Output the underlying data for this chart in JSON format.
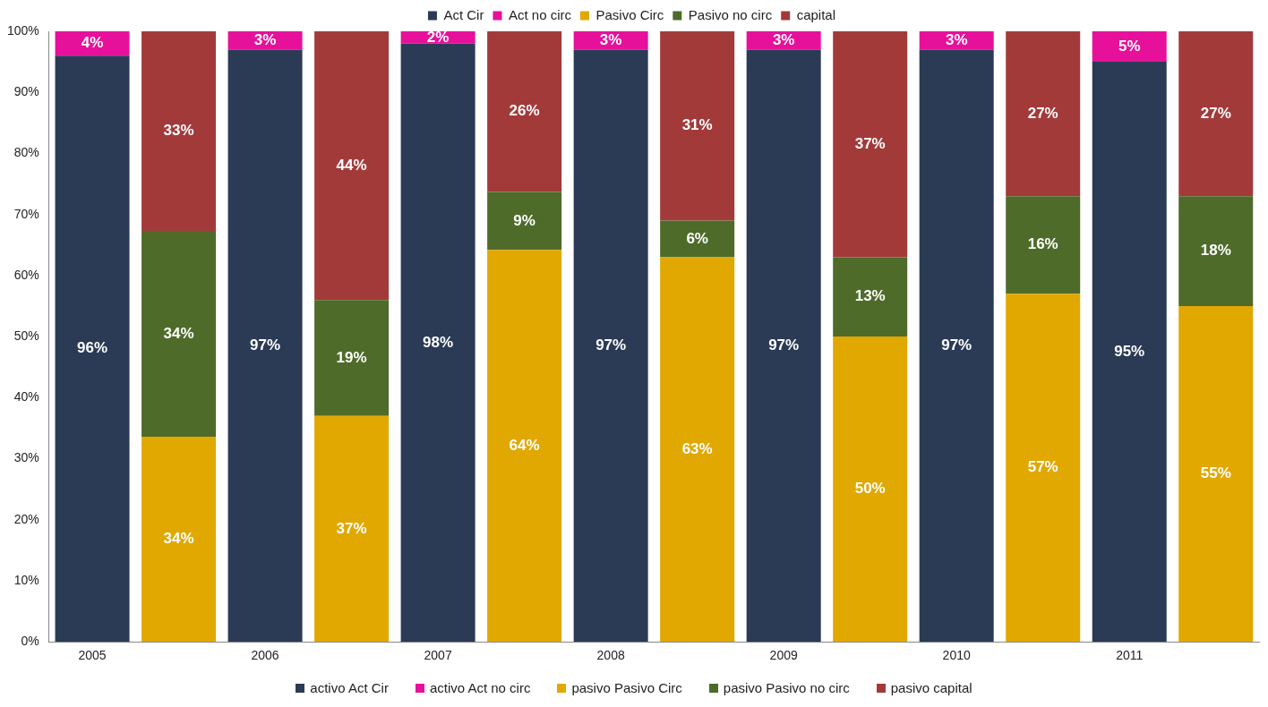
{
  "chart_data": {
    "type": "bar",
    "stacked": true,
    "categories": [
      "2005",
      null,
      "2006",
      null,
      "2007",
      null,
      "2008",
      null,
      "2009",
      null,
      "2010",
      null,
      "2011",
      null
    ],
    "ylim": [
      0,
      100
    ],
    "yticks": [
      {
        "value": 0,
        "label": "0%"
      },
      {
        "value": 10,
        "label": "10%"
      },
      {
        "value": 20,
        "label": "20%"
      },
      {
        "value": 30,
        "label": "30%"
      },
      {
        "value": 40,
        "label": "40%"
      },
      {
        "value": 50,
        "label": "50%"
      },
      {
        "value": 60,
        "label": "60%"
      },
      {
        "value": 70,
        "label": "70%"
      },
      {
        "value": 80,
        "label": "80%"
      },
      {
        "value": 90,
        "label": "90%"
      },
      {
        "value": 100,
        "label": "100%"
      }
    ],
    "grid": false,
    "legend": "top",
    "series": [
      {
        "name": "Act Cir",
        "color": "#2b3a55",
        "values": [
          96,
          null,
          97,
          null,
          98,
          null,
          97,
          null,
          97,
          null,
          97,
          null,
          95,
          null
        ],
        "value_labels": [
          "96%",
          null,
          "97%",
          null,
          "98%",
          null,
          "97%",
          null,
          "97%",
          null,
          "97%",
          null,
          "95%",
          null
        ]
      },
      {
        "name": "Act no circ",
        "color": "#e6109b",
        "values": [
          4,
          null,
          3,
          null,
          2,
          null,
          3,
          null,
          3,
          null,
          3,
          null,
          5,
          null
        ],
        "value_labels": [
          "4%",
          null,
          "3%",
          null,
          "2%",
          null,
          "3%",
          null,
          "3%",
          null,
          "3%",
          null,
          "5%",
          null
        ]
      },
      {
        "name": "Pasivo Circ",
        "color": "#e0a800",
        "values": [
          null,
          33.6,
          null,
          37,
          null,
          64.2,
          null,
          63,
          null,
          50,
          null,
          57,
          null,
          55
        ],
        "value_labels": [
          null,
          "34%",
          null,
          "37%",
          null,
          "64%",
          null,
          "63%",
          null,
          "50%",
          null,
          "57%",
          null,
          "55%"
        ]
      },
      {
        "name": "Pasivo no circ",
        "color": "#4e6b2a",
        "values": [
          null,
          33.7,
          null,
          19,
          null,
          9.5,
          null,
          6,
          null,
          13,
          null,
          16,
          null,
          18
        ],
        "value_labels": [
          null,
          "34%",
          null,
          "19%",
          null,
          "9%",
          null,
          "6%",
          null,
          "13%",
          null,
          "16%",
          null,
          "18%"
        ]
      },
      {
        "name": "capital",
        "color": "#a33a3a",
        "values": [
          null,
          32.7,
          null,
          44,
          null,
          26.3,
          null,
          31,
          null,
          37,
          null,
          27,
          null,
          27
        ],
        "value_labels": [
          null,
          "33%",
          null,
          "44%",
          null,
          "26%",
          null,
          "31%",
          null,
          "37%",
          null,
          "27%",
          null,
          "27%"
        ]
      }
    ],
    "annotations": [
      "activo Act Cir",
      "activo Act no circ",
      "pasivo Pasivo Circ",
      "pasivo Pasivo no circ",
      "pasivo capital"
    ]
  }
}
